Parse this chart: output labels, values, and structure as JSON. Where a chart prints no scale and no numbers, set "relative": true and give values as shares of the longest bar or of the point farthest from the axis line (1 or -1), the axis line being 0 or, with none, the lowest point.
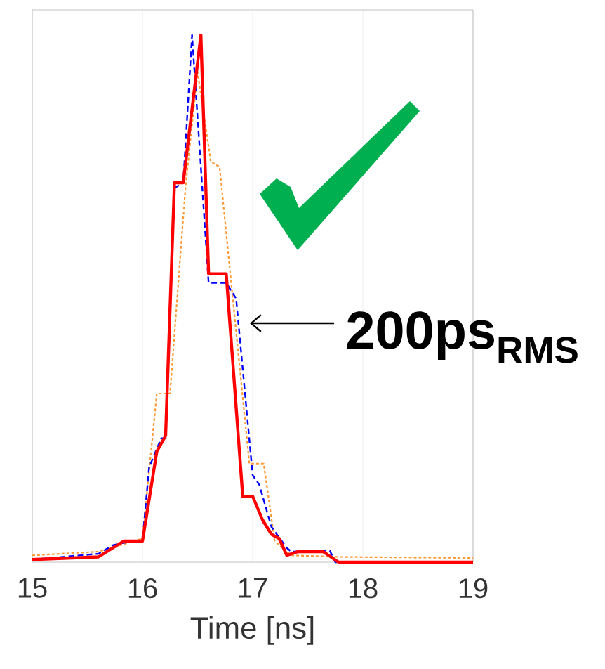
{
  "chart_data": {
    "type": "line",
    "relative": true,
    "xlabel": "Time [ns]",
    "xlim": [
      15,
      19
    ],
    "xticks": [
      15,
      16,
      17,
      18,
      19
    ],
    "grid": "x",
    "marker": "none",
    "annotations": [
      "200ps$_{RMS}$"
    ],
    "series": [
      {
        "color": "#ff9933",
        "line_style": "dotted",
        "x": [
          15.0,
          15.6,
          16.0,
          16.13,
          16.25,
          16.39,
          16.5,
          16.62,
          16.7,
          16.97,
          17.1,
          17.2,
          17.35,
          17.8,
          19.0
        ],
        "values": [
          0.013,
          0.02,
          0.045,
          0.32,
          0.32,
          0.71,
          0.93,
          0.76,
          0.75,
          0.187,
          0.187,
          0.04,
          0.013,
          0.01,
          0.008
        ]
      },
      {
        "color": "#0000ff",
        "line_style": "dashed",
        "x": [
          15.0,
          15.6,
          15.73,
          15.83,
          16.0,
          16.06,
          16.17,
          16.21,
          16.29,
          16.37,
          16.45,
          16.6,
          16.76,
          16.85,
          17.0,
          17.06,
          17.17,
          17.31,
          17.35,
          17.7,
          17.75,
          19.0
        ],
        "values": [
          0.005,
          0.016,
          0.032,
          0.037,
          0.04,
          0.18,
          0.235,
          0.235,
          0.71,
          0.72,
          1.0,
          0.53,
          0.53,
          0.5,
          0.165,
          0.147,
          0.067,
          0.027,
          0.02,
          0.022,
          0.0,
          0.0
        ]
      },
      {
        "color": "#ff0000",
        "line_style": "solid",
        "x": [
          15.0,
          15.6,
          15.83,
          16.0,
          16.13,
          16.21,
          16.29,
          16.37,
          16.53,
          16.6,
          16.76,
          16.91,
          17.0,
          17.09,
          17.17,
          17.24,
          17.31,
          17.41,
          17.64,
          17.78,
          19.0
        ],
        "values": [
          0.005,
          0.01,
          0.04,
          0.04,
          0.21,
          0.24,
          0.72,
          0.72,
          1.0,
          0.547,
          0.547,
          0.125,
          0.125,
          0.08,
          0.053,
          0.045,
          0.013,
          0.02,
          0.02,
          0.0,
          0.0
        ]
      }
    ]
  }
}
